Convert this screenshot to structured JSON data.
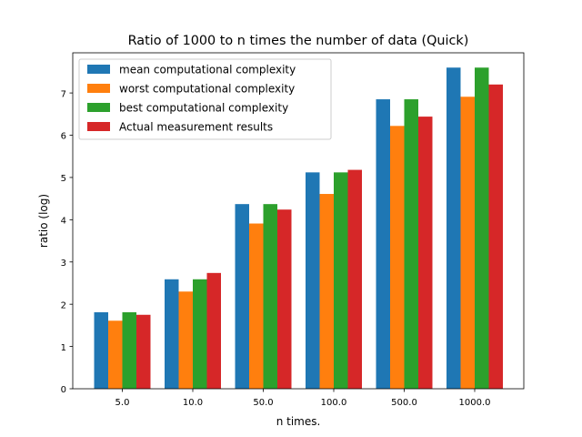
{
  "chart_data": {
    "type": "bar",
    "title": "Ratio of 1000 to n times the number of data (Quick)",
    "xlabel": "n times.",
    "ylabel": "ratio (log)",
    "categories": [
      "5.0",
      "10.0",
      "50.0",
      "100.0",
      "500.0",
      "1000.0"
    ],
    "ylim": [
      0,
      7.95
    ],
    "yticks": [
      0,
      1,
      2,
      3,
      4,
      5,
      6,
      7
    ],
    "grid": false,
    "legend_position": "top-left",
    "series": [
      {
        "name": "mean computational complexity",
        "color": "#1f77b4",
        "values": [
          1.81,
          2.59,
          4.37,
          5.12,
          6.85,
          7.6
        ]
      },
      {
        "name": "worst computational complexity",
        "color": "#ff7f0e",
        "values": [
          1.61,
          2.3,
          3.91,
          4.61,
          6.22,
          6.91
        ]
      },
      {
        "name": "best computational complexity",
        "color": "#2ca02c",
        "values": [
          1.81,
          2.59,
          4.37,
          5.12,
          6.85,
          7.6
        ]
      },
      {
        "name": "Actual measurement results",
        "color": "#d62728",
        "values": [
          1.75,
          2.74,
          4.24,
          5.18,
          6.44,
          7.2
        ]
      }
    ]
  }
}
